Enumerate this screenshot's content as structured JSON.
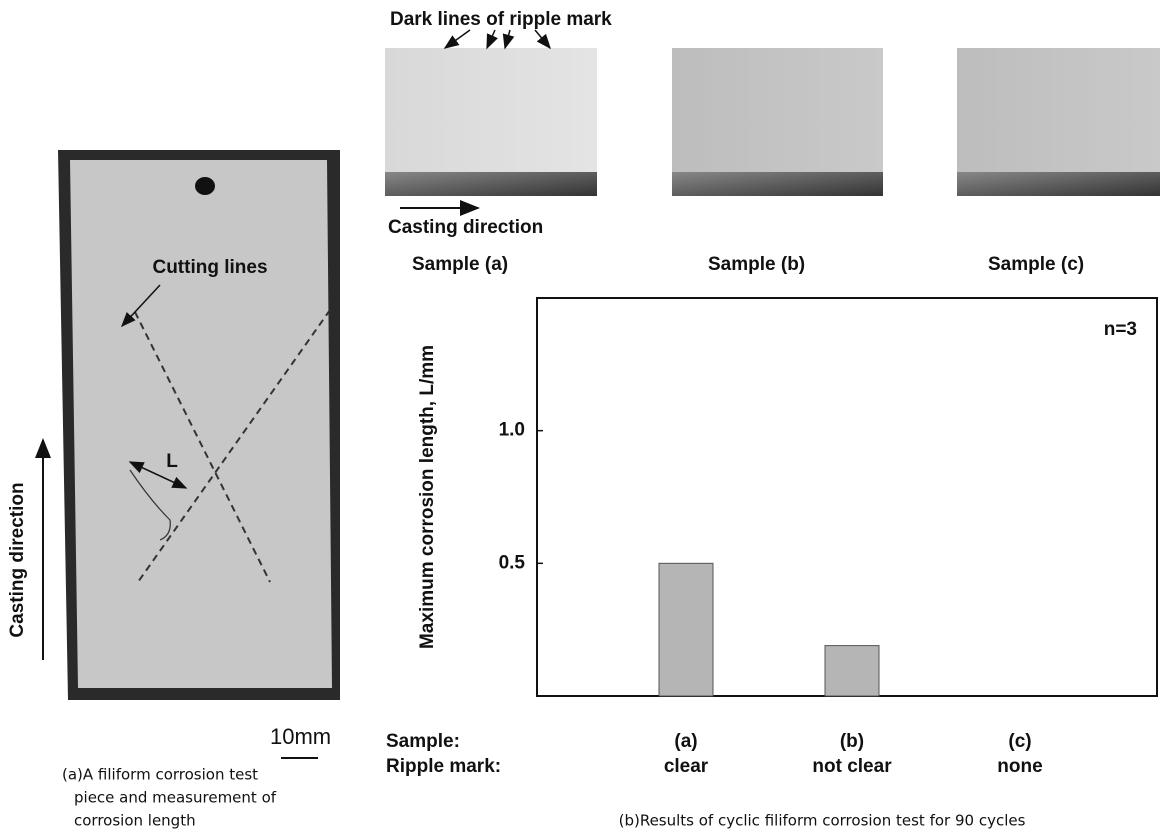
{
  "chart_data": {
    "type": "bar",
    "y_label": "Maximum corrosion length, L/mm",
    "categories": [
      "(a)",
      "(b)",
      "(c)"
    ],
    "ripple_marks": [
      "clear",
      "not clear",
      "none"
    ],
    "row_labels": [
      "Sample:",
      "Ripple mark:"
    ],
    "values": [
      0.5,
      0.19,
      0
    ],
    "color": "#b5b5b5",
    "ylim": [
      0,
      1.5
    ],
    "yticks": [
      0.5,
      {
        "value": 1,
        "label": "1.0"
      }
    ],
    "annotation": "n=3",
    "caption": "(b)Results of cyclic filiform corrosion test for 90 cycles"
  },
  "photos": {
    "ripple_label": "Dark lines of ripple mark",
    "casting_direction": "Casting direction",
    "samples": [
      "Sample (a)",
      "Sample (b)",
      "Sample (c)"
    ]
  },
  "test_piece": {
    "cutting_lines": "Cutting lines",
    "length_label": "L",
    "casting_direction": "Casting direction",
    "scale": "10mm",
    "caption": [
      "(a)A filiform corrosion test",
      "piece and measurement of",
      "corrosion length"
    ]
  }
}
